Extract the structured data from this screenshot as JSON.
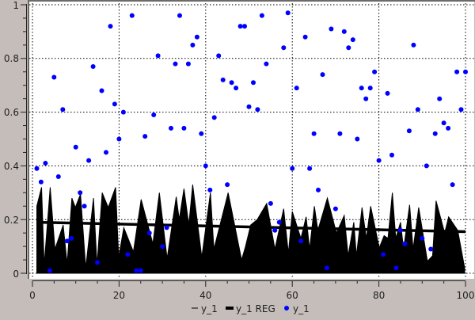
{
  "chart_data": [
    {
      "type": "area",
      "name": "y_1",
      "color": "#000000",
      "x": [
        1,
        2.1,
        2.7,
        4.1,
        5.2,
        7.1,
        8.0,
        9.1,
        9.9,
        11.1,
        12.3,
        14.1,
        14.9,
        16.1,
        17.5,
        19.2,
        19.9,
        21.1,
        23.3,
        25.1,
        27.8,
        29.3,
        31.1,
        33.2,
        33.9,
        35.0,
        36.1,
        37.0,
        39.1,
        41.1,
        41.9,
        45.2,
        48.3,
        49.2,
        50.4,
        51.9,
        54.1,
        56.0,
        58.0,
        59.1,
        60.0,
        62.0,
        63.2,
        64.0,
        65.1,
        65.9,
        68.1,
        70.2,
        72.0,
        72.9,
        74.2,
        74.8,
        76.1,
        77.1,
        78.1,
        80.1,
        81.2,
        82.1,
        83.1,
        83.9,
        85.0,
        85.7,
        87.1,
        87.9,
        89.2,
        91.2,
        92.4,
        93.2,
        95.2,
        96.1,
        98.2,
        99.8
      ],
      "y": [
        0.25,
        0.32,
        0.03,
        0.32,
        0.09,
        0.18,
        0.035,
        0.28,
        0.245,
        0.295,
        0.02,
        0.28,
        0.03,
        0.3,
        0.245,
        0.32,
        0.06,
        0.17,
        0.08,
        0.275,
        0.11,
        0.3,
        0.055,
        0.285,
        0.2,
        0.315,
        0.18,
        0.33,
        0.06,
        0.3,
        0.09,
        0.3,
        0.05,
        0.1,
        0.18,
        0.2,
        0.26,
        0.09,
        0.24,
        0.075,
        0.23,
        0.13,
        0.21,
        0.09,
        0.25,
        0.16,
        0.28,
        0.15,
        0.215,
        0.065,
        0.19,
        0.065,
        0.245,
        0.13,
        0.25,
        0.095,
        0.14,
        0.13,
        0.3,
        0.13,
        0.19,
        0.09,
        0.255,
        0.09,
        0.245,
        0.045,
        0.065,
        0.27,
        0.15,
        0.21,
        0.16,
        0.02
      ]
    },
    {
      "type": "line",
      "name": "y_1 REG",
      "color": "#000000",
      "x": [
        1,
        100
      ],
      "y": [
        0.19,
        0.155
      ]
    },
    {
      "type": "scatter",
      "name": "y_1",
      "color": "#0000ff",
      "x": [
        1,
        2,
        3,
        4,
        5,
        6,
        7,
        8,
        9,
        10,
        11,
        12,
        13,
        14,
        15,
        16,
        17,
        18,
        19,
        20,
        21,
        22,
        23,
        24,
        25,
        26,
        27,
        28,
        29,
        30,
        31,
        32,
        33,
        34,
        35,
        36,
        37,
        38,
        39,
        40,
        41,
        42,
        43,
        44,
        45,
        46,
        47,
        48,
        49,
        50,
        51,
        52,
        53,
        54,
        55,
        56,
        57,
        58,
        59,
        60,
        61,
        62,
        63,
        64,
        65,
        66,
        67,
        68,
        69,
        70,
        71,
        72,
        73,
        74,
        75,
        76,
        77,
        78,
        79,
        80,
        81,
        82,
        83,
        84,
        85,
        86,
        87,
        88,
        89,
        90,
        91,
        92,
        93,
        94,
        95,
        96,
        97,
        98,
        99,
        100
      ],
      "y": [
        0.39,
        0.34,
        0.41,
        0.01,
        0.73,
        0.36,
        0.61,
        0.12,
        0.13,
        0.47,
        0.3,
        0.25,
        0.42,
        0.77,
        0.04,
        0.68,
        0.45,
        0.92,
        0.63,
        0.5,
        0.6,
        0.07,
        0.96,
        0.01,
        0.01,
        0.51,
        0.15,
        0.59,
        0.81,
        0.1,
        0.17,
        0.54,
        0.78,
        0.96,
        0.54,
        0.78,
        0.85,
        0.88,
        0.52,
        0.4,
        0.31,
        0.58,
        0.81,
        0.72,
        0.33,
        0.71,
        0.69,
        0.92,
        0.92,
        0.62,
        0.71,
        0.61,
        0.96,
        0.78,
        0.26,
        0.16,
        0.19,
        0.84,
        0.97,
        0.39,
        0.69,
        0.12,
        0.88,
        0.39,
        0.52,
        0.31,
        0.74,
        0.02,
        0.91,
        0.24,
        0.52,
        0.9,
        0.84,
        0.87,
        0.5,
        0.69,
        0.65,
        0.69,
        0.75,
        0.42,
        0.07,
        0.67,
        0.44,
        0.02,
        0.16,
        0.11,
        0.53,
        0.85,
        0.61,
        0.13,
        0.4,
        0.09,
        0.52,
        0.65,
        0.56,
        0.54,
        0.33,
        0.75,
        0.61,
        0.75
      ]
    }
  ],
  "axes": {
    "xlim": [
      0,
      100
    ],
    "ylim": [
      0,
      1
    ],
    "xticks": [
      "0",
      "20",
      "40",
      "60",
      "80",
      "100"
    ],
    "yticks": [
      "0",
      "0.2",
      "0.4",
      "0.6",
      "0.8",
      "1"
    ],
    "grid": true
  },
  "legend": {
    "placement": "bottom",
    "items": [
      {
        "label": "y_1",
        "marker": "thin-line"
      },
      {
        "label": "y_1 REG",
        "marker": "thick-line"
      },
      {
        "label": "y_1",
        "marker": "dot"
      }
    ]
  }
}
